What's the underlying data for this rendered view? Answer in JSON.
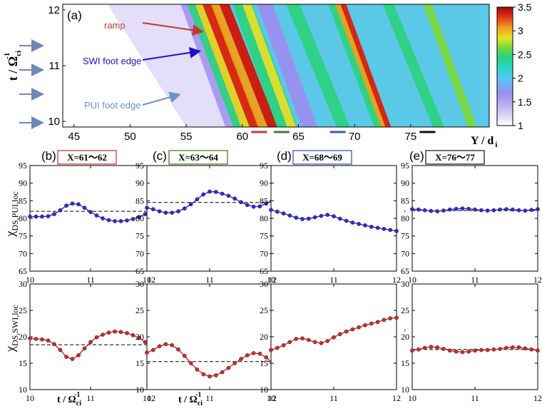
{
  "heatmap": {
    "panel_label": "(a)",
    "ylabel": "t / Ω",
    "ylabel_sub": "ci",
    "ylabel_sup": "-1",
    "xlabel": "Y / d",
    "xlabel_sub": "i",
    "x_ticks": [
      "45",
      "50",
      "55",
      "60",
      "65",
      "70",
      "75"
    ],
    "y_ticks": [
      "12",
      "11",
      "10"
    ],
    "colorbar_ticks": [
      "3.5",
      "3",
      "2.5",
      "2",
      "1.5",
      "1"
    ],
    "annotations": {
      "ramp": "ramp",
      "swi": "SWI foot edge",
      "pui": "PUI foot edge"
    },
    "colors": {
      "ramp": "#c0392b",
      "swi": "#1a12c8",
      "pui": "#6e8fd0",
      "arrow": "#6f87b8"
    }
  },
  "chart_data": [
    {
      "type": "heatmap",
      "title": "(a)",
      "xlabel": "Y / d_i",
      "ylabel": "t / Ω_ci^-1",
      "xlim": [
        44,
        82
      ],
      "ylim": [
        9.9,
        12.1
      ],
      "zlim": [
        1,
        3.5
      ],
      "colorbar_ticks": [
        3.5,
        3,
        2.5,
        2,
        1.5,
        1
      ],
      "x_region_markers": [
        {
          "label": "X=61~62",
          "color": "#d03a34",
          "range": [
            60.8,
            62.2
          ]
        },
        {
          "label": "X=63~64",
          "color": "#3f7f2a",
          "range": [
            62.8,
            64.2
          ]
        },
        {
          "label": "X=68~69",
          "color": "#3b58c4",
          "range": [
            67.8,
            69.2
          ]
        },
        {
          "label": "X=76~77",
          "color": "#111111",
          "range": [
            75.8,
            77.2
          ]
        }
      ]
    },
    {
      "type": "line",
      "panel": "(b)",
      "title": "X=61~62",
      "frame_color": "#d03a34",
      "xlabel": "",
      "ylabel": "χDS,PUI,loc",
      "xlim": [
        10,
        12
      ],
      "ylim": [
        65,
        95
      ],
      "x_ticks": [
        "10",
        "11",
        "12"
      ],
      "y_ticks": [
        "95",
        "90",
        "85",
        "80",
        "75",
        "70",
        "65"
      ],
      "mean": 82.0,
      "x": [
        10.0,
        10.1,
        10.2,
        10.3,
        10.4,
        10.5,
        10.6,
        10.7,
        10.8,
        10.9,
        11.0,
        11.1,
        11.2,
        11.3,
        11.4,
        11.5,
        11.6,
        11.7,
        11.8,
        11.9,
        12.0
      ],
      "series": [
        {
          "name": "χDS,PUI,loc",
          "color": "#2b2bd6",
          "values": [
            80.5,
            80.5,
            80.5,
            80.6,
            81.2,
            82.3,
            83.6,
            84.2,
            84.0,
            83.0,
            81.8,
            80.8,
            80.0,
            79.5,
            79.2,
            79.2,
            79.4,
            79.8,
            80.4,
            81.2,
            82.0
          ]
        }
      ]
    },
    {
      "type": "line",
      "panel": "(c)",
      "title": "X=63~64",
      "frame_color": "#3f7f2a",
      "xlabel": "",
      "ylabel": "",
      "xlim": [
        10,
        12
      ],
      "ylim": [
        65,
        95
      ],
      "x_ticks": [
        "10",
        "11",
        "12"
      ],
      "y_ticks": [
        "95",
        "90",
        "85",
        "80",
        "75",
        "70",
        "65"
      ],
      "mean": 84.5,
      "x": [
        10.0,
        10.1,
        10.2,
        10.3,
        10.4,
        10.5,
        10.6,
        10.7,
        10.8,
        10.9,
        11.0,
        11.1,
        11.2,
        11.3,
        11.4,
        11.5,
        11.6,
        11.7,
        11.8,
        11.9,
        12.0
      ],
      "series": [
        {
          "name": "χDS,PUI,loc",
          "color": "#2b2bd6",
          "values": [
            83.0,
            82.6,
            82.0,
            81.6,
            81.6,
            82.0,
            82.8,
            84.0,
            85.4,
            86.8,
            87.6,
            87.5,
            87.0,
            86.4,
            85.6,
            84.6,
            83.8,
            83.3,
            83.4,
            84.2,
            85.0
          ]
        }
      ]
    },
    {
      "type": "line",
      "panel": "(d)",
      "title": "X=68~69",
      "frame_color": "#3b58c4",
      "xlabel": "",
      "ylabel": "",
      "xlim": [
        10,
        12
      ],
      "ylim": [
        65,
        95
      ],
      "x_ticks": [
        "10",
        "11",
        "12"
      ],
      "y_ticks": [
        "95",
        "90",
        "85",
        "80",
        "75",
        "70",
        "65"
      ],
      "mean": null,
      "x": [
        10.0,
        10.1,
        10.2,
        10.3,
        10.4,
        10.5,
        10.6,
        10.7,
        10.8,
        10.9,
        11.0,
        11.1,
        11.2,
        11.3,
        11.4,
        11.5,
        11.6,
        11.7,
        11.8,
        11.9,
        12.0
      ],
      "series": [
        {
          "name": "χDS,PUI,loc",
          "color": "#2b2bd6",
          "values": [
            82.4,
            81.9,
            81.4,
            80.8,
            80.2,
            79.8,
            79.9,
            80.3,
            80.7,
            81.0,
            80.6,
            79.9,
            79.3,
            78.8,
            78.4,
            78.0,
            77.6,
            77.3,
            77.0,
            76.7,
            76.4
          ]
        }
      ]
    },
    {
      "type": "line",
      "panel": "(e)",
      "title": "X=76~77",
      "frame_color": "#222222",
      "xlabel": "",
      "ylabel": "",
      "xlim": [
        10,
        12
      ],
      "ylim": [
        65,
        95
      ],
      "x_ticks": [
        "10",
        "11",
        "12"
      ],
      "y_ticks": [
        "95",
        "90",
        "85",
        "80",
        "75",
        "70",
        "65"
      ],
      "mean": 82.2,
      "x": [
        10.0,
        10.1,
        10.2,
        10.3,
        10.4,
        10.5,
        10.6,
        10.7,
        10.8,
        10.9,
        11.0,
        11.1,
        11.2,
        11.3,
        11.4,
        11.5,
        11.6,
        11.7,
        11.8,
        11.9,
        12.0
      ],
      "series": [
        {
          "name": "χDS,PUI,loc",
          "color": "#2b2bd6",
          "values": [
            82.6,
            82.5,
            82.3,
            82.1,
            82.0,
            82.2,
            82.5,
            82.7,
            82.8,
            82.7,
            82.5,
            82.3,
            82.2,
            82.3,
            82.5,
            82.6,
            82.5,
            82.3,
            82.2,
            82.4,
            82.6
          ]
        }
      ]
    },
    {
      "type": "line",
      "panel": "bottom-1",
      "xlabel": "t / Ω_ci^-1",
      "ylabel": "χDS,SWI,loc",
      "xlim": [
        10,
        12
      ],
      "ylim": [
        10,
        30
      ],
      "x_ticks": [
        "10",
        "11",
        "12"
      ],
      "y_ticks": [
        "30",
        "25",
        "20",
        "15",
        "10"
      ],
      "mean": 18.5,
      "x": [
        10.0,
        10.1,
        10.2,
        10.3,
        10.4,
        10.5,
        10.6,
        10.7,
        10.8,
        10.9,
        11.0,
        11.1,
        11.2,
        11.3,
        11.4,
        11.5,
        11.6,
        11.7,
        11.8,
        11.9,
        12.0
      ],
      "series": [
        {
          "name": "χDS,SWI,loc",
          "color": "#d12a2a",
          "values": [
            19.7,
            19.6,
            19.5,
            19.3,
            18.6,
            17.5,
            16.2,
            15.8,
            16.5,
            17.8,
            19.0,
            19.9,
            20.4,
            20.8,
            21.0,
            20.9,
            20.7,
            20.3,
            19.8,
            19.0,
            18.0
          ]
        }
      ]
    },
    {
      "type": "line",
      "panel": "bottom-2",
      "xlabel": "t / Ω_ci^-1",
      "ylabel": "",
      "xlim": [
        10,
        12
      ],
      "ylim": [
        10,
        30
      ],
      "x_ticks": [
        "10",
        "11",
        "12"
      ],
      "y_ticks": [
        "30",
        "25",
        "20",
        "15",
        "10"
      ],
      "mean": 15.3,
      "x": [
        10.0,
        10.1,
        10.2,
        10.3,
        10.4,
        10.5,
        10.6,
        10.7,
        10.8,
        10.9,
        11.0,
        11.1,
        11.2,
        11.3,
        11.4,
        11.5,
        11.6,
        11.7,
        11.8,
        11.9,
        12.0
      ],
      "series": [
        {
          "name": "χDS,SWI,loc",
          "color": "#d12a2a",
          "values": [
            17.0,
            17.5,
            18.2,
            18.6,
            18.4,
            17.6,
            16.4,
            15.0,
            13.8,
            12.9,
            12.5,
            12.7,
            13.3,
            14.1,
            15.0,
            15.8,
            16.5,
            16.9,
            16.8,
            16.1,
            15.0
          ]
        }
      ]
    },
    {
      "type": "line",
      "panel": "bottom-3",
      "xlabel": "",
      "ylabel": "",
      "xlim": [
        10,
        12
      ],
      "ylim": [
        10,
        30
      ],
      "x_ticks": [
        "10",
        "11",
        "12"
      ],
      "y_ticks": [
        "30",
        "25",
        "20",
        "15",
        "10"
      ],
      "mean": null,
      "x": [
        10.0,
        10.1,
        10.2,
        10.3,
        10.4,
        10.5,
        10.6,
        10.7,
        10.8,
        10.9,
        11.0,
        11.1,
        11.2,
        11.3,
        11.4,
        11.5,
        11.6,
        11.7,
        11.8,
        11.9,
        12.0
      ],
      "series": [
        {
          "name": "χDS,SWI,loc",
          "color": "#d12a2a",
          "values": [
            17.5,
            17.9,
            18.4,
            19.0,
            19.6,
            19.7,
            19.4,
            19.0,
            18.8,
            19.2,
            19.9,
            20.5,
            21.0,
            21.4,
            21.8,
            22.2,
            22.5,
            22.8,
            23.2,
            23.5,
            23.6
          ]
        }
      ]
    },
    {
      "type": "line",
      "panel": "bottom-4",
      "xlabel": "",
      "ylabel": "",
      "xlim": [
        10,
        12
      ],
      "ylim": [
        10,
        30
      ],
      "x_ticks": [
        "10",
        "11",
        "12"
      ],
      "y_ticks": [
        "30",
        "25",
        "20",
        "15",
        "10"
      ],
      "mean": 17.6,
      "x": [
        10.0,
        10.1,
        10.2,
        10.3,
        10.4,
        10.5,
        10.6,
        10.7,
        10.8,
        10.9,
        11.0,
        11.1,
        11.2,
        11.3,
        11.4,
        11.5,
        11.6,
        11.7,
        11.8,
        11.9,
        12.0
      ],
      "series": [
        {
          "name": "χDS,SWI,loc",
          "color": "#d12a2a",
          "values": [
            17.4,
            17.6,
            17.9,
            18.1,
            18.0,
            17.7,
            17.4,
            17.2,
            17.1,
            17.2,
            17.4,
            17.5,
            17.5,
            17.6,
            17.7,
            17.9,
            18.0,
            18.0,
            17.8,
            17.6,
            17.4
          ]
        }
      ]
    }
  ],
  "panels": {
    "b": {
      "label": "(b)",
      "title": "X=61～62"
    },
    "c": {
      "label": "(c)",
      "title": "X=63～64"
    },
    "d": {
      "label": "(d)",
      "title": "X=68～69"
    },
    "e": {
      "label": "(e)",
      "title": "X=76～77"
    }
  },
  "axis_labels": {
    "pui_chi": "χ",
    "pui_sub": "DS,PUI,loc",
    "swi_chi": "χ",
    "swi_sub": "DS,SWI,loc",
    "t_label": "t / Ω",
    "t_sub": "ci",
    "t_sup": "-1",
    "stray_mark": ","
  }
}
